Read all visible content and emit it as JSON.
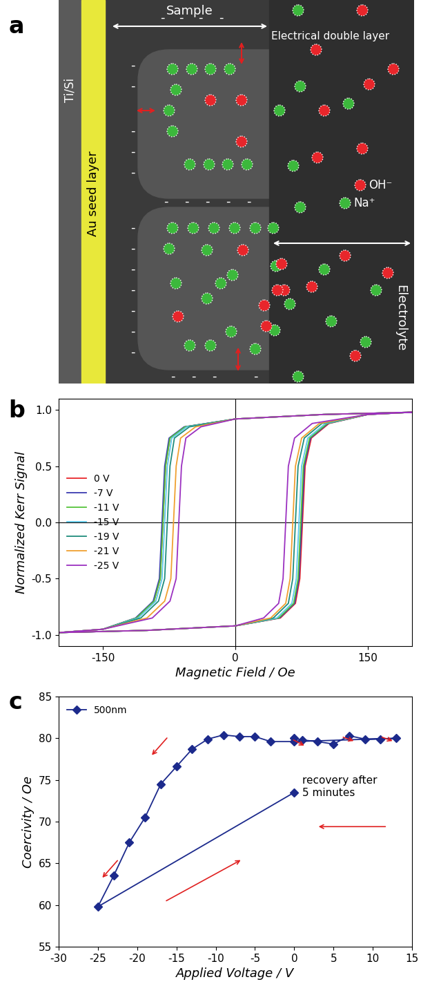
{
  "diagram": {
    "panel": "a",
    "labels": {
      "sample": "Sample",
      "double_layer": "Electrical double layer",
      "electrolyte": "Electrolyte",
      "seed_layer": "Au seed layer",
      "substrate": "Ti/Si"
    },
    "charge": "-",
    "ions": [
      {
        "label": "OH⁻",
        "color": "#e8262b"
      },
      {
        "label": "Na⁺",
        "color": "#3cb83c"
      }
    ]
  },
  "chart_data": [
    {
      "panel": "b",
      "type": "line",
      "x_label": "Magnetic Field / Oe",
      "y_label": "Normalized Kerr Signal",
      "xlim": [
        -200,
        200
      ],
      "ylim": [
        -1.1,
        1.1
      ],
      "xticks": [
        -150,
        0,
        150
      ],
      "yticks": [
        {
          "value": -1.0,
          "label": "-1.0"
        },
        {
          "value": -0.5,
          "label": "-0.5"
        },
        {
          "value": 0.0,
          "label": "0.0"
        },
        {
          "value": 0.5,
          "label": "0.5"
        },
        {
          "value": 1.0,
          "label": "1.0"
        }
      ],
      "legend": "center left",
      "series": [
        {
          "name": "0 V",
          "color": "#e8262b",
          "x": [
            200,
            100,
            0,
            -57,
            -74,
            -79,
            -82,
            -85,
            -92,
            -112,
            -150,
            -200,
            -200,
            -100,
            0,
            51,
            68,
            73,
            76,
            79,
            86,
            106,
            150,
            200
          ],
          "values": [
            0.98,
            0.96,
            0.92,
            0.85,
            0.75,
            0.5,
            0.0,
            -0.5,
            -0.7,
            -0.85,
            -0.95,
            -0.98,
            -0.98,
            -0.96,
            -0.92,
            -0.85,
            -0.72,
            -0.5,
            0.0,
            0.5,
            0.75,
            0.88,
            0.96,
            0.98
          ]
        },
        {
          "name": "-7 V",
          "color": "#3a3ab0",
          "x": [
            200,
            100,
            0,
            -58,
            -75,
            -80,
            -83,
            -86,
            -93,
            -113,
            -150,
            -200,
            -200,
            -100,
            0,
            50,
            67,
            72,
            75,
            78,
            85,
            105,
            150,
            200
          ],
          "values": [
            0.98,
            0.96,
            0.92,
            0.85,
            0.75,
            0.5,
            0.0,
            -0.5,
            -0.7,
            -0.85,
            -0.95,
            -0.98,
            -0.98,
            -0.96,
            -0.92,
            -0.85,
            -0.72,
            -0.5,
            0.0,
            0.5,
            0.75,
            0.88,
            0.96,
            0.98
          ]
        },
        {
          "name": "-11 V",
          "color": "#55c43a",
          "x": [
            200,
            100,
            0,
            -57,
            -74,
            -79,
            -82,
            -85,
            -92,
            -112,
            -150,
            -200,
            -200,
            -100,
            0,
            49,
            66,
            71,
            74,
            77,
            84,
            104,
            150,
            200
          ],
          "values": [
            0.98,
            0.96,
            0.92,
            0.85,
            0.75,
            0.5,
            0.0,
            -0.5,
            -0.7,
            -0.85,
            -0.95,
            -0.98,
            -0.98,
            -0.96,
            -0.92,
            -0.85,
            -0.72,
            -0.5,
            0.0,
            0.5,
            0.75,
            0.88,
            0.96,
            0.98
          ]
        },
        {
          "name": "-15 V",
          "color": "#5bc8e8",
          "x": [
            200,
            100,
            0,
            -55,
            -72,
            -77,
            -80,
            -83,
            -90,
            -110,
            -150,
            -200,
            -200,
            -100,
            0,
            47,
            64,
            69,
            72,
            75,
            82,
            102,
            150,
            200
          ],
          "values": [
            0.98,
            0.96,
            0.92,
            0.85,
            0.75,
            0.5,
            0.0,
            -0.5,
            -0.7,
            -0.85,
            -0.95,
            -0.98,
            -0.98,
            -0.96,
            -0.92,
            -0.85,
            -0.72,
            -0.5,
            0.0,
            0.5,
            0.75,
            0.88,
            0.96,
            0.98
          ]
        },
        {
          "name": "-19 V",
          "color": "#1f8c7c",
          "x": [
            200,
            100,
            0,
            -52,
            -69,
            -74,
            -77,
            -80,
            -87,
            -107,
            -150,
            -200,
            -200,
            -100,
            0,
            43,
            60,
            65,
            68,
            71,
            78,
            98,
            150,
            200
          ],
          "values": [
            0.98,
            0.96,
            0.92,
            0.85,
            0.75,
            0.5,
            0.0,
            -0.5,
            -0.7,
            -0.85,
            -0.95,
            -0.98,
            -0.98,
            -0.96,
            -0.92,
            -0.85,
            -0.72,
            -0.5,
            0.0,
            0.5,
            0.75,
            0.88,
            0.96,
            0.98
          ]
        },
        {
          "name": "-21 V",
          "color": "#f0a030",
          "x": [
            200,
            100,
            0,
            -45,
            -62,
            -67,
            -70,
            -73,
            -80,
            -100,
            -150,
            -200,
            -200,
            -100,
            0,
            40,
            57,
            62,
            65,
            68,
            75,
            95,
            150,
            200
          ],
          "values": [
            0.98,
            0.96,
            0.92,
            0.85,
            0.75,
            0.5,
            0.0,
            -0.5,
            -0.7,
            -0.85,
            -0.95,
            -0.98,
            -0.98,
            -0.96,
            -0.92,
            -0.85,
            -0.72,
            -0.5,
            0.0,
            0.5,
            0.75,
            0.88,
            0.96,
            0.98
          ]
        },
        {
          "name": "-25 V",
          "color": "#9b30c0",
          "x": [
            200,
            100,
            0,
            -39,
            -56,
            -61,
            -64,
            -67,
            -74,
            -94,
            -150,
            -200,
            -200,
            -100,
            0,
            32,
            49,
            54,
            57,
            60,
            67,
            87,
            150,
            200
          ],
          "values": [
            0.98,
            0.96,
            0.92,
            0.85,
            0.75,
            0.5,
            0.0,
            -0.5,
            -0.7,
            -0.85,
            -0.95,
            -0.98,
            -0.98,
            -0.96,
            -0.92,
            -0.85,
            -0.72,
            -0.5,
            0.0,
            0.5,
            0.75,
            0.88,
            0.96,
            0.98
          ]
        }
      ]
    },
    {
      "panel": "c",
      "type": "line",
      "x_label": "Applied Voltage / V",
      "y_label": "Coercivity / Oe",
      "xlim": [
        -30,
        15
      ],
      "ylim": [
        55,
        85
      ],
      "xticks": [
        -30,
        -25,
        -20,
        -15,
        -10,
        -5,
        0,
        5,
        10,
        15
      ],
      "yticks": [
        55,
        60,
        65,
        70,
        75,
        80,
        85
      ],
      "legend": "upper left",
      "annotation": "recovery after\n5 minutes",
      "series": [
        {
          "name": "500nm",
          "color": "#1c2a8c",
          "marker": "diamond",
          "line_style": "solid",
          "x": [
            0,
            1,
            3,
            5,
            7,
            9,
            11,
            13,
            0,
            -3,
            -5,
            -7,
            -9,
            -11,
            -13,
            -15,
            -17,
            -19,
            -21,
            -23,
            -25,
            0
          ],
          "values": [
            80,
            79.8,
            79.6,
            79.3,
            80.3,
            79.9,
            79.9,
            80,
            79.6,
            79.6,
            80.2,
            80.2,
            80.4,
            79.9,
            78.7,
            76.6,
            74.5,
            70.5,
            67.5,
            63.5,
            59.8,
            73.5
          ]
        }
      ]
    }
  ]
}
